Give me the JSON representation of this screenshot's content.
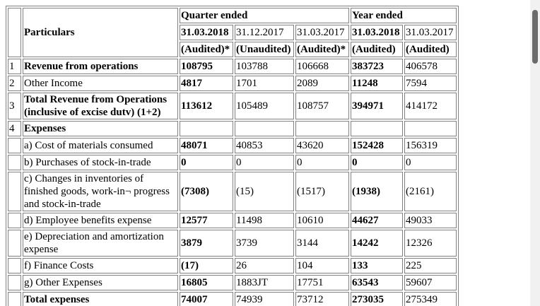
{
  "header": {
    "particulars": "Particulars",
    "quarter_ended": "Quarter ended",
    "year_ended": "Year ended",
    "dates": [
      "31.03.2018",
      "31.12.2017",
      "31.03.2017",
      "31.03.2018",
      "31.03.2017"
    ],
    "audit": [
      "(Audited)*",
      "(Unaudited)",
      "(Audited)*",
      "(Audited)",
      "(Audited)"
    ]
  },
  "table": {
    "rows": [
      {
        "num": "1",
        "label": "Revenue from operations",
        "values": [
          "108795",
          "103788",
          "106668",
          "383723",
          "406578"
        ]
      },
      {
        "num": "2",
        "label": "Other Income",
        "values": [
          "4817",
          "1701",
          "2089",
          "11248",
          "7594"
        ]
      },
      {
        "num": "3",
        "label": "Total Revenue from Operations (inclusive of excise dutv) (1+2)",
        "values": [
          "113612",
          "105489",
          "108757",
          "394971",
          "414172"
        ]
      },
      {
        "num": "4",
        "label": "Expenses"
      },
      {
        "label": "a) Cost of materials consumed",
        "values": [
          "48071",
          "40853",
          "43620",
          "152428",
          "156319"
        ]
      },
      {
        "label": "b) Purchases of stock-in-trade",
        "values": [
          "0",
          "0",
          "0",
          "0",
          "0"
        ]
      },
      {
        "label": "c) Changes in inventories of finished goods, work-in¬ progress and stock-in-trade",
        "values": [
          "(7308)",
          "(15)",
          "(1517)",
          "(1938)",
          "(2161)"
        ]
      },
      {
        "label": "d) Employee benefits expense",
        "values": [
          "12577",
          "11498",
          "10610",
          "44627",
          "49033"
        ]
      },
      {
        "label": "e) Depreciation and amortization expense",
        "values": [
          "3879",
          "3739",
          "3144",
          "14242",
          "12326"
        ]
      },
      {
        "label": "f) Finance Costs",
        "values": [
          "(17)",
          "26",
          "104",
          "133",
          "225"
        ]
      },
      {
        "label": "g) Other Expenses",
        "values": [
          "16805",
          "1883JT",
          "17751",
          "63543",
          "59607"
        ]
      },
      {
        "label": "Total expenses",
        "values": [
          "74007",
          "74939",
          "73712",
          "273035",
          "275349"
        ]
      }
    ]
  }
}
